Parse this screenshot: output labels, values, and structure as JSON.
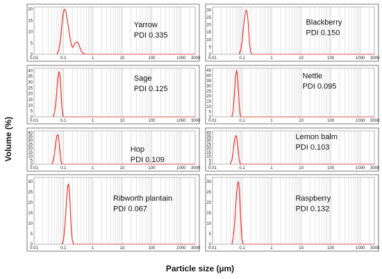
{
  "figure": {
    "ylabel": "Volume (%)",
    "xlabel": "Particle size (µm)"
  },
  "colors": {
    "curve": "#e8302a",
    "grid": "#c8c8c8",
    "frame": "#555555"
  },
  "chart_data": [
    {
      "type": "line",
      "scale": "log-x",
      "label": "Yarrow",
      "pdi": "PDI 0.335",
      "xlim": [
        0.01,
        3000
      ],
      "ylim": [
        0,
        21
      ],
      "x_ticks": [
        "0.01",
        "0.1",
        "1",
        "10",
        "100",
        "1000",
        "3000"
      ],
      "y_ticks": [
        "0",
        "5",
        "10",
        "15",
        "20"
      ],
      "series": [
        {
          "x": [
            0.06,
            0.07,
            0.08,
            0.09,
            0.1,
            0.11,
            0.12,
            0.14,
            0.16,
            0.18,
            0.2,
            0.22,
            0.25,
            0.28,
            0.32,
            0.36,
            0.4,
            0.45,
            0.5,
            0.55
          ],
          "y": [
            0,
            2,
            7,
            14,
            19,
            20,
            19,
            14,
            9,
            5,
            3,
            3.5,
            5,
            5.5,
            5,
            3,
            1.5,
            0.6,
            0.2,
            0
          ]
        }
      ]
    },
    {
      "type": "line",
      "scale": "log-x",
      "label": "Blackberry",
      "pdi": "PDI 0.150",
      "xlim": [
        0.01,
        3000
      ],
      "ylim": [
        0,
        32
      ],
      "x_ticks": [
        "0.01",
        "0.1",
        "1",
        "10",
        "100",
        "1000",
        "3000"
      ],
      "y_ticks": [
        "0",
        "5",
        "10",
        "15",
        "20",
        "25",
        "30"
      ],
      "series": [
        {
          "x": [
            0.08,
            0.09,
            0.1,
            0.11,
            0.12,
            0.13,
            0.14,
            0.15,
            0.16,
            0.17,
            0.18,
            0.19,
            0.2,
            0.22
          ],
          "y": [
            0,
            3,
            9,
            17,
            24,
            28.5,
            30,
            28,
            22,
            14,
            7,
            3,
            1,
            0
          ]
        }
      ]
    },
    {
      "type": "line",
      "scale": "log-x",
      "label": "Sage",
      "pdi": "PDI 0.125",
      "xlim": [
        0.01,
        3000
      ],
      "ylim": [
        0,
        42
      ],
      "x_ticks": [
        "0.01",
        "0.1",
        "1",
        "10",
        "100",
        "1000",
        "3000"
      ],
      "y_ticks": [
        "0",
        "5",
        "10",
        "15",
        "20",
        "25",
        "30",
        "35",
        "40"
      ],
      "series": [
        {
          "x": [
            0.045,
            0.05,
            0.055,
            0.06,
            0.065,
            0.07,
            0.075,
            0.08,
            0.085,
            0.09,
            0.095,
            0.1
          ],
          "y": [
            0,
            4,
            12,
            24,
            34,
            39,
            37,
            28,
            16,
            7,
            2,
            0
          ]
        }
      ]
    },
    {
      "type": "line",
      "scale": "log-x",
      "label": "Nettle",
      "pdi": "PDI 0.095",
      "xlim": [
        0.01,
        3000
      ],
      "ylim": [
        0,
        47
      ],
      "x_ticks": [
        "0.01",
        "0.1",
        "1",
        "10",
        "100",
        "1000",
        "3000"
      ],
      "y_ticks": [
        "0",
        "5",
        "10",
        "15",
        "20",
        "25",
        "30",
        "35",
        "40",
        "45"
      ],
      "series": [
        {
          "x": [
            0.045,
            0.05,
            0.055,
            0.06,
            0.065,
            0.07,
            0.075,
            0.08,
            0.085,
            0.09
          ],
          "y": [
            0,
            6,
            22,
            38,
            45,
            40,
            26,
            12,
            4,
            0
          ]
        }
      ]
    },
    {
      "type": "line",
      "scale": "log-x",
      "label": "Hop",
      "pdi": "PDI 0.109",
      "xlim": [
        0.01,
        3000
      ],
      "ylim": [
        0,
        42
      ],
      "x_ticks": [
        "0.01",
        "0.1",
        "1",
        "10",
        "100",
        "1000",
        "3000"
      ],
      "y_ticks": [
        "0",
        "5",
        "10",
        "15",
        "20",
        "25",
        "30",
        "35",
        "40"
      ],
      "series": [
        {
          "x": [
            0.04,
            0.045,
            0.05,
            0.055,
            0.06,
            0.065,
            0.07,
            0.075,
            0.08,
            0.085,
            0.09
          ],
          "y": [
            0,
            4,
            14,
            28,
            36,
            37,
            30,
            18,
            8,
            2,
            0
          ]
        }
      ]
    },
    {
      "type": "line",
      "scale": "log-x",
      "label": "Lemon balm",
      "pdi": "PDI 0.103",
      "xlim": [
        0.01,
        3000
      ],
      "ylim": [
        0,
        42
      ],
      "x_ticks": [
        "0.01",
        "0.1",
        "1",
        "10",
        "100",
        "1000",
        "3000"
      ],
      "y_ticks": [
        "0",
        "5",
        "10",
        "15",
        "20",
        "25",
        "30",
        "35",
        "40"
      ],
      "series": [
        {
          "x": [
            0.04,
            0.045,
            0.05,
            0.055,
            0.06,
            0.065,
            0.07,
            0.075,
            0.08,
            0.085,
            0.09
          ],
          "y": [
            0,
            5,
            16,
            29,
            36,
            35,
            27,
            15,
            6,
            1.5,
            0
          ]
        }
      ]
    },
    {
      "type": "line",
      "scale": "log-x",
      "label": "Ribworth plantain",
      "pdi": "PDI 0.067",
      "xlim": [
        0.01,
        3000
      ],
      "ylim": [
        0,
        32
      ],
      "x_ticks": [
        "0.01",
        "0.1",
        "1",
        "10",
        "100",
        "1000",
        "3000"
      ],
      "y_ticks": [
        "0",
        "5",
        "10",
        "15",
        "20",
        "25",
        "30"
      ],
      "series": [
        {
          "x": [
            0.09,
            0.1,
            0.11,
            0.12,
            0.13,
            0.14,
            0.15,
            0.16,
            0.17,
            0.18,
            0.19,
            0.2,
            0.22
          ],
          "y": [
            0,
            2,
            7,
            15,
            23,
            28,
            29,
            25,
            18,
            10,
            5,
            2,
            0
          ]
        }
      ]
    },
    {
      "type": "line",
      "scale": "log-x",
      "label": "Raspberry",
      "pdi": "PDI 0.132",
      "xlim": [
        0.01,
        3000
      ],
      "ylim": [
        0,
        32
      ],
      "x_ticks": [
        "0.01",
        "0.1",
        "1",
        "10",
        "100",
        "1000",
        "3000"
      ],
      "y_ticks": [
        "0",
        "5",
        "10",
        "15",
        "20",
        "25",
        "30"
      ],
      "series": [
        {
          "x": [
            0.045,
            0.05,
            0.055,
            0.06,
            0.065,
            0.07,
            0.075,
            0.08,
            0.085,
            0.09,
            0.095,
            0.1,
            0.11
          ],
          "y": [
            0,
            3,
            9,
            17,
            24,
            28.5,
            30,
            27,
            20,
            12,
            6,
            2,
            0
          ]
        }
      ]
    }
  ]
}
